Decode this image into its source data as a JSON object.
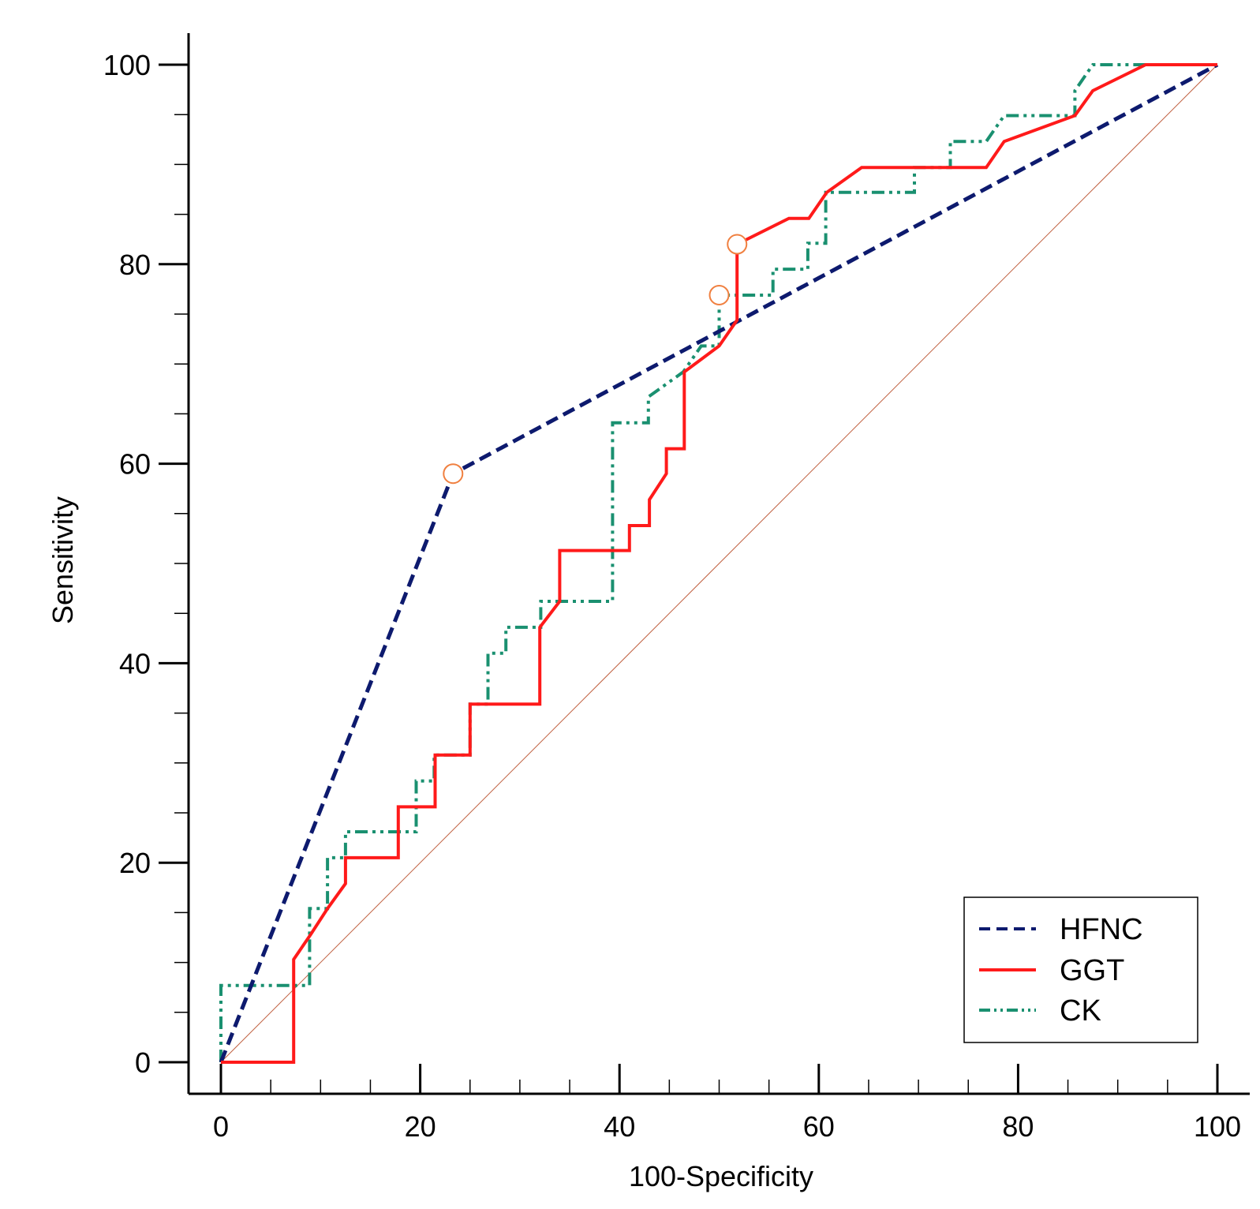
{
  "chart_data": {
    "type": "line",
    "xlabel": "100-Specificity",
    "ylabel": "Sensitivity",
    "xlim": [
      0,
      100
    ],
    "ylim": [
      0,
      100
    ],
    "xticks": [
      0,
      20,
      40,
      60,
      80,
      100
    ],
    "yticks": [
      0,
      20,
      40,
      60,
      80,
      100
    ],
    "minor_tick_step": 5,
    "grid": false,
    "legend_position": "bottom-right",
    "reference_line": {
      "x": [
        0,
        100
      ],
      "y": [
        0,
        100
      ],
      "color": "#c06040"
    },
    "series": [
      {
        "name": "HFNC",
        "style": "dashed",
        "color": "#0d1a6e",
        "x": [
          0,
          23.3,
          100
        ],
        "y": [
          0,
          59,
          100
        ]
      },
      {
        "name": "GGT",
        "style": "solid",
        "color": "#ff1a1a",
        "x": [
          0,
          7.3,
          7.3,
          9,
          9,
          10.7,
          10.7,
          12.5,
          12.5,
          17.8,
          17.8,
          21.5,
          21.5,
          25,
          25,
          32,
          32,
          34,
          34,
          41,
          41,
          43,
          43,
          44.7,
          44.7,
          46.5,
          46.5,
          50,
          51.8,
          51.8,
          57,
          59,
          60.8,
          64.3,
          76.8,
          78.6,
          85.7,
          87.5,
          92.8,
          100
        ],
        "y": [
          0,
          0,
          10.3,
          12.8,
          12.8,
          15.4,
          15.4,
          17.9,
          20.5,
          20.5,
          25.6,
          25.6,
          30.8,
          30.8,
          35.9,
          35.9,
          43.6,
          46.2,
          51.3,
          51.3,
          53.8,
          53.8,
          56.4,
          59,
          61.5,
          61.5,
          69.2,
          71.8,
          74.4,
          82,
          84.6,
          84.6,
          87.2,
          89.7,
          89.7,
          92.3,
          94.9,
          97.4,
          100,
          100
        ]
      },
      {
        "name": "CK",
        "style": "dash-dot-dot",
        "color": "#1a9070",
        "x": [
          0,
          0,
          8.9,
          8.9,
          10.7,
          10.7,
          12.5,
          12.5,
          19.6,
          19.6,
          21.4,
          21.4,
          25,
          25,
          26.8,
          26.8,
          28.6,
          28.6,
          32.1,
          32.1,
          33.9,
          33.9,
          39.3,
          39.3,
          41.1,
          41.1,
          42.9,
          42.9,
          46.4,
          48.2,
          50,
          50,
          55.4,
          55.4,
          58.9,
          58.9,
          60.7,
          60.7,
          69.6,
          69.6,
          73.2,
          73.2,
          76.8,
          78.6,
          85.7,
          85.7,
          87.5,
          100
        ],
        "y": [
          0,
          7.7,
          7.7,
          15.4,
          15.4,
          20.5,
          20.5,
          23.1,
          23.1,
          28.2,
          28.2,
          30.8,
          30.8,
          35.9,
          35.9,
          41,
          41,
          43.6,
          43.6,
          46.2,
          46.2,
          46.2,
          46.2,
          64.1,
          64.1,
          64.1,
          64.1,
          66.7,
          69.2,
          71.8,
          71.8,
          76.9,
          76.9,
          79.5,
          79.5,
          82.1,
          82.1,
          87.2,
          87.2,
          89.7,
          89.7,
          92.3,
          92.3,
          94.9,
          94.9,
          97.4,
          100,
          100
        ]
      }
    ],
    "optimal_points": [
      {
        "series": "HFNC",
        "x": 23.3,
        "y": 59
      },
      {
        "series": "GGT",
        "x": 51.8,
        "y": 82
      },
      {
        "series": "CK",
        "x": 50,
        "y": 76.9
      }
    ],
    "marker_color": "#f08040"
  }
}
